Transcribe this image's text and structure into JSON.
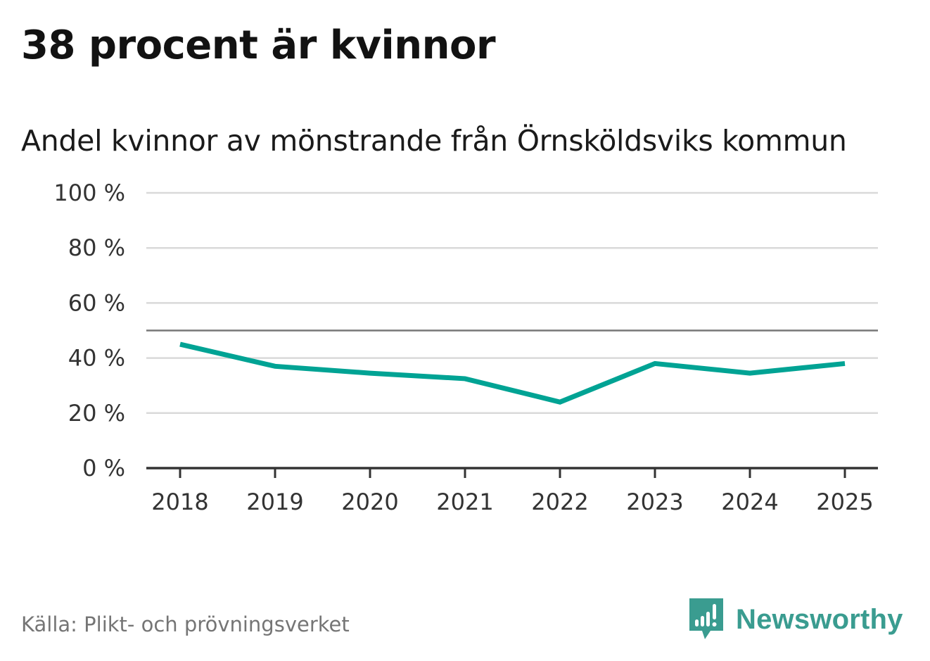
{
  "title": "38 procent är kvinnor",
  "subtitle": "Andel kvinnor av mönstrande från Örnsköldsviks kommun",
  "source": "Källa: Plikt- och prövningsverket",
  "logo": {
    "text": "Newsworthy",
    "icon": "bar-chart-speech-bubble-icon"
  },
  "colors": {
    "line": "#00a394",
    "grid": "#d9d9d9",
    "reference": "#777777",
    "axis": "#333333",
    "logo": "#3a9c90"
  },
  "chart_data": {
    "type": "line",
    "title": "Andel kvinnor av mönstrande från Örnsköldsviks kommun",
    "xlabel": "",
    "ylabel": "",
    "categories": [
      "2018",
      "2019",
      "2020",
      "2021",
      "2022",
      "2023",
      "2024",
      "2025"
    ],
    "series": [
      {
        "name": "Andel kvinnor",
        "values": [
          45,
          37,
          34.5,
          32.5,
          24,
          38,
          34.5,
          38
        ]
      }
    ],
    "reference_line": 50,
    "ylim": [
      0,
      100
    ],
    "yticks": [
      0,
      20,
      40,
      60,
      80,
      100
    ],
    "ytick_labels": [
      "0 %",
      "20 %",
      "40 %",
      "60 %",
      "80 %",
      "100 %"
    ],
    "grid": true,
    "legend": "none"
  }
}
